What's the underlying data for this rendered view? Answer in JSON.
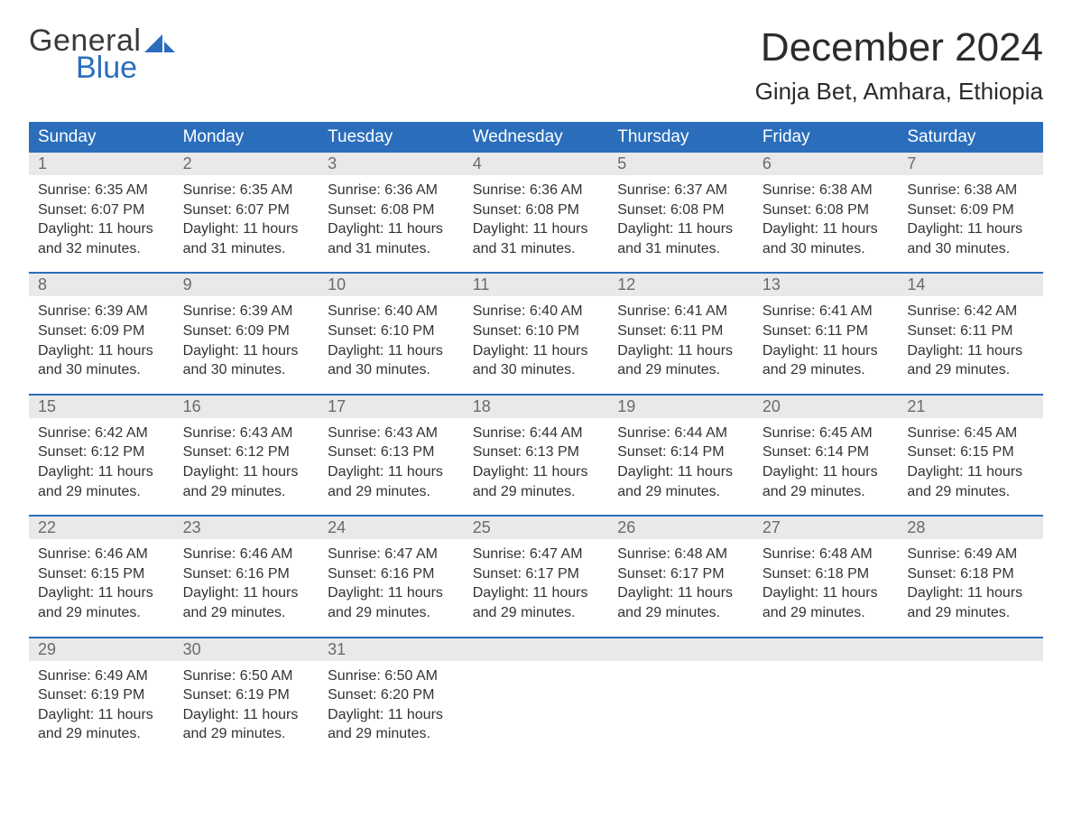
{
  "logo": {
    "line1": "General",
    "line2": "Blue"
  },
  "title": "December 2024",
  "subtitle": "Ginja Bet, Amhara, Ethiopia",
  "colors": {
    "header_bg": "#2a6ebb",
    "header_text": "#ffffff",
    "daynum_bg": "#e9e9e9",
    "daynum_text": "#6a6a6a",
    "body_text": "#333333",
    "rule": "#2a6ebb",
    "page_bg": "#ffffff",
    "logo_gray": "#3a3a3a",
    "logo_blue": "#2a6ebb"
  },
  "day_headers": [
    "Sunday",
    "Monday",
    "Tuesday",
    "Wednesday",
    "Thursday",
    "Friday",
    "Saturday"
  ],
  "weeks": [
    [
      {
        "n": "1",
        "sr": "Sunrise: 6:35 AM",
        "ss": "Sunset: 6:07 PM",
        "d1": "Daylight: 11 hours",
        "d2": "and 32 minutes."
      },
      {
        "n": "2",
        "sr": "Sunrise: 6:35 AM",
        "ss": "Sunset: 6:07 PM",
        "d1": "Daylight: 11 hours",
        "d2": "and 31 minutes."
      },
      {
        "n": "3",
        "sr": "Sunrise: 6:36 AM",
        "ss": "Sunset: 6:08 PM",
        "d1": "Daylight: 11 hours",
        "d2": "and 31 minutes."
      },
      {
        "n": "4",
        "sr": "Sunrise: 6:36 AM",
        "ss": "Sunset: 6:08 PM",
        "d1": "Daylight: 11 hours",
        "d2": "and 31 minutes."
      },
      {
        "n": "5",
        "sr": "Sunrise: 6:37 AM",
        "ss": "Sunset: 6:08 PM",
        "d1": "Daylight: 11 hours",
        "d2": "and 31 minutes."
      },
      {
        "n": "6",
        "sr": "Sunrise: 6:38 AM",
        "ss": "Sunset: 6:08 PM",
        "d1": "Daylight: 11 hours",
        "d2": "and 30 minutes."
      },
      {
        "n": "7",
        "sr": "Sunrise: 6:38 AM",
        "ss": "Sunset: 6:09 PM",
        "d1": "Daylight: 11 hours",
        "d2": "and 30 minutes."
      }
    ],
    [
      {
        "n": "8",
        "sr": "Sunrise: 6:39 AM",
        "ss": "Sunset: 6:09 PM",
        "d1": "Daylight: 11 hours",
        "d2": "and 30 minutes."
      },
      {
        "n": "9",
        "sr": "Sunrise: 6:39 AM",
        "ss": "Sunset: 6:09 PM",
        "d1": "Daylight: 11 hours",
        "d2": "and 30 minutes."
      },
      {
        "n": "10",
        "sr": "Sunrise: 6:40 AM",
        "ss": "Sunset: 6:10 PM",
        "d1": "Daylight: 11 hours",
        "d2": "and 30 minutes."
      },
      {
        "n": "11",
        "sr": "Sunrise: 6:40 AM",
        "ss": "Sunset: 6:10 PM",
        "d1": "Daylight: 11 hours",
        "d2": "and 30 minutes."
      },
      {
        "n": "12",
        "sr": "Sunrise: 6:41 AM",
        "ss": "Sunset: 6:11 PM",
        "d1": "Daylight: 11 hours",
        "d2": "and 29 minutes."
      },
      {
        "n": "13",
        "sr": "Sunrise: 6:41 AM",
        "ss": "Sunset: 6:11 PM",
        "d1": "Daylight: 11 hours",
        "d2": "and 29 minutes."
      },
      {
        "n": "14",
        "sr": "Sunrise: 6:42 AM",
        "ss": "Sunset: 6:11 PM",
        "d1": "Daylight: 11 hours",
        "d2": "and 29 minutes."
      }
    ],
    [
      {
        "n": "15",
        "sr": "Sunrise: 6:42 AM",
        "ss": "Sunset: 6:12 PM",
        "d1": "Daylight: 11 hours",
        "d2": "and 29 minutes."
      },
      {
        "n": "16",
        "sr": "Sunrise: 6:43 AM",
        "ss": "Sunset: 6:12 PM",
        "d1": "Daylight: 11 hours",
        "d2": "and 29 minutes."
      },
      {
        "n": "17",
        "sr": "Sunrise: 6:43 AM",
        "ss": "Sunset: 6:13 PM",
        "d1": "Daylight: 11 hours",
        "d2": "and 29 minutes."
      },
      {
        "n": "18",
        "sr": "Sunrise: 6:44 AM",
        "ss": "Sunset: 6:13 PM",
        "d1": "Daylight: 11 hours",
        "d2": "and 29 minutes."
      },
      {
        "n": "19",
        "sr": "Sunrise: 6:44 AM",
        "ss": "Sunset: 6:14 PM",
        "d1": "Daylight: 11 hours",
        "d2": "and 29 minutes."
      },
      {
        "n": "20",
        "sr": "Sunrise: 6:45 AM",
        "ss": "Sunset: 6:14 PM",
        "d1": "Daylight: 11 hours",
        "d2": "and 29 minutes."
      },
      {
        "n": "21",
        "sr": "Sunrise: 6:45 AM",
        "ss": "Sunset: 6:15 PM",
        "d1": "Daylight: 11 hours",
        "d2": "and 29 minutes."
      }
    ],
    [
      {
        "n": "22",
        "sr": "Sunrise: 6:46 AM",
        "ss": "Sunset: 6:15 PM",
        "d1": "Daylight: 11 hours",
        "d2": "and 29 minutes."
      },
      {
        "n": "23",
        "sr": "Sunrise: 6:46 AM",
        "ss": "Sunset: 6:16 PM",
        "d1": "Daylight: 11 hours",
        "d2": "and 29 minutes."
      },
      {
        "n": "24",
        "sr": "Sunrise: 6:47 AM",
        "ss": "Sunset: 6:16 PM",
        "d1": "Daylight: 11 hours",
        "d2": "and 29 minutes."
      },
      {
        "n": "25",
        "sr": "Sunrise: 6:47 AM",
        "ss": "Sunset: 6:17 PM",
        "d1": "Daylight: 11 hours",
        "d2": "and 29 minutes."
      },
      {
        "n": "26",
        "sr": "Sunrise: 6:48 AM",
        "ss": "Sunset: 6:17 PM",
        "d1": "Daylight: 11 hours",
        "d2": "and 29 minutes."
      },
      {
        "n": "27",
        "sr": "Sunrise: 6:48 AM",
        "ss": "Sunset: 6:18 PM",
        "d1": "Daylight: 11 hours",
        "d2": "and 29 minutes."
      },
      {
        "n": "28",
        "sr": "Sunrise: 6:49 AM",
        "ss": "Sunset: 6:18 PM",
        "d1": "Daylight: 11 hours",
        "d2": "and 29 minutes."
      }
    ],
    [
      {
        "n": "29",
        "sr": "Sunrise: 6:49 AM",
        "ss": "Sunset: 6:19 PM",
        "d1": "Daylight: 11 hours",
        "d2": "and 29 minutes."
      },
      {
        "n": "30",
        "sr": "Sunrise: 6:50 AM",
        "ss": "Sunset: 6:19 PM",
        "d1": "Daylight: 11 hours",
        "d2": "and 29 minutes."
      },
      {
        "n": "31",
        "sr": "Sunrise: 6:50 AM",
        "ss": "Sunset: 6:20 PM",
        "d1": "Daylight: 11 hours",
        "d2": "and 29 minutes."
      },
      null,
      null,
      null,
      null
    ]
  ]
}
